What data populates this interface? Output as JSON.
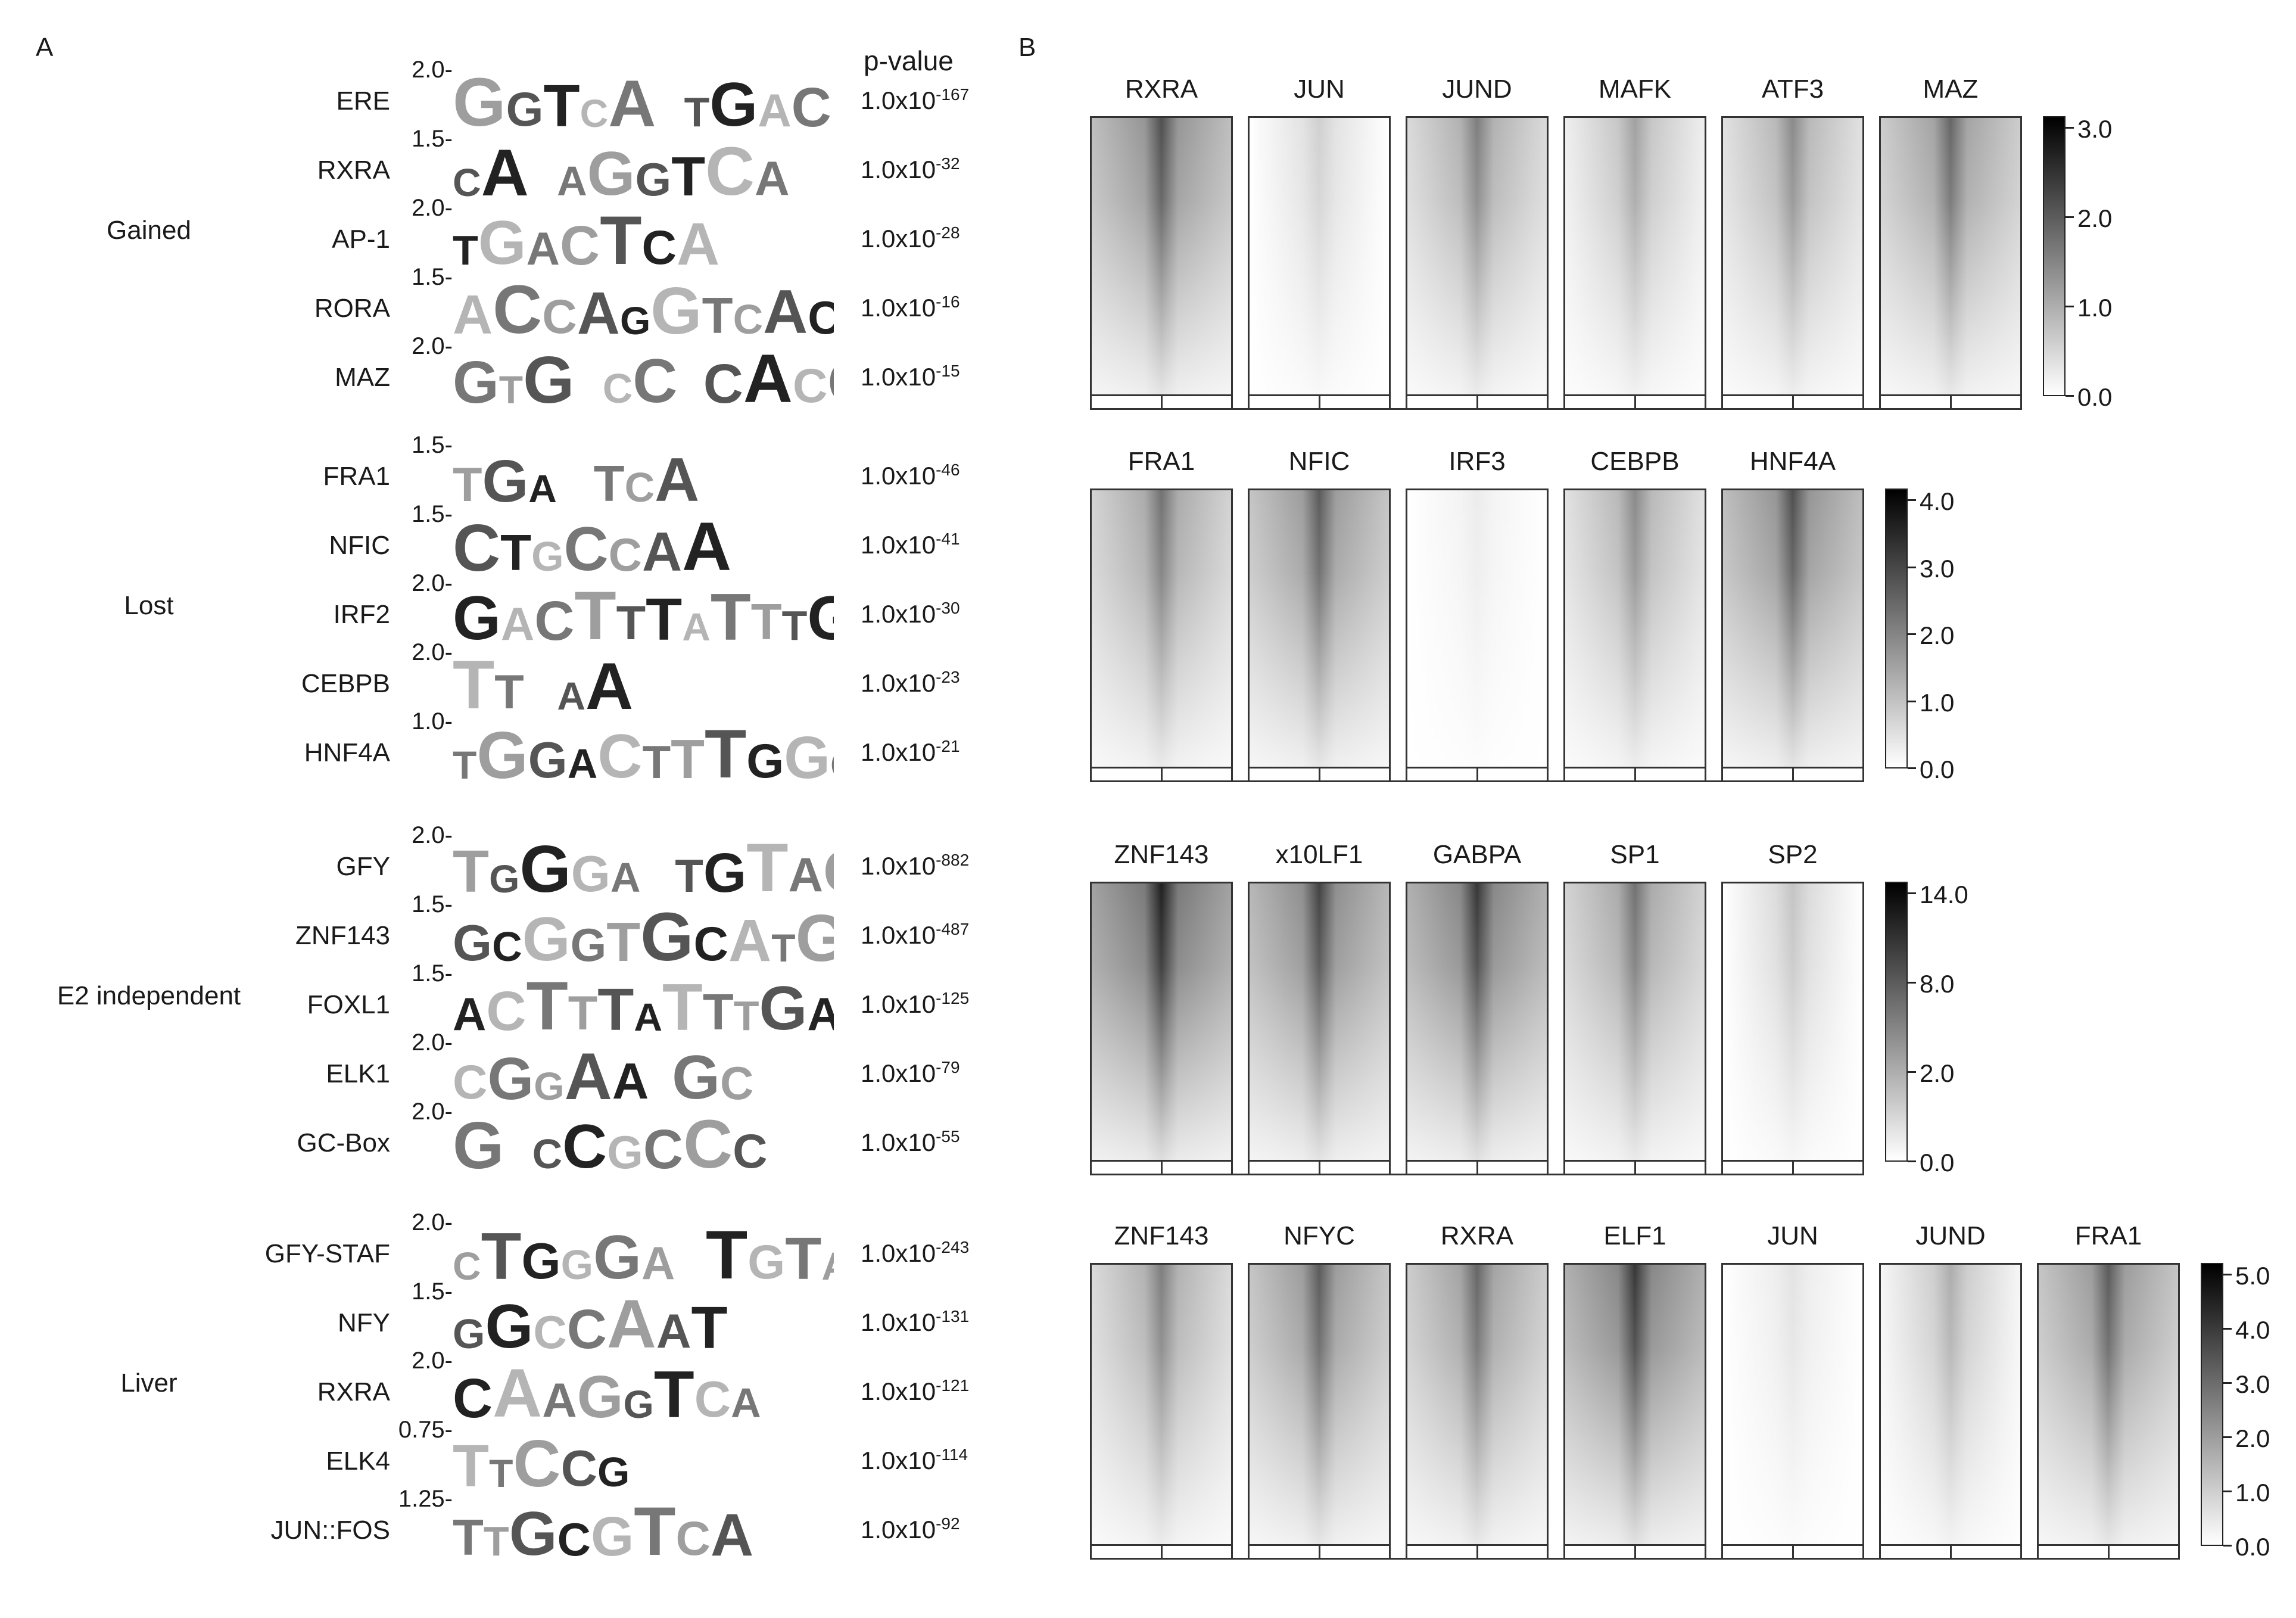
{
  "panelA": {
    "letter": "A",
    "pvalue_header": "p-value",
    "groups": [
      {
        "label": "Gained",
        "motifs": [
          {
            "name": "ERE",
            "ytick": "2.0-",
            "logo": "GGTCA TGACC.",
            "p_base": "1.0x10",
            "p_exp": "-167"
          },
          {
            "name": "RXRA",
            "ytick": "1.5-",
            "logo": "CA AGGTCA",
            "p_base": "1.0x10",
            "p_exp": "-32"
          },
          {
            "name": "AP-1",
            "ytick": "2.0-",
            "logo": "TGACTCA",
            "p_base": "1.0x10",
            "p_exp": "-28"
          },
          {
            "name": "RORA",
            "ytick": "1.5-",
            "logo": "ACCAGGTCACAG",
            "p_base": "1.0x10",
            "p_exp": "-16"
          },
          {
            "name": "MAZ",
            "ytick": "2.0-",
            "logo": "GTG CC CACCAG",
            "p_base": "1.0x10",
            "p_exp": "-15"
          }
        ]
      },
      {
        "label": "Lost",
        "motifs": [
          {
            "name": "FRA1",
            "ytick": "1.5-",
            "logo": "TGA TCA",
            "p_base": "1.0x10",
            "p_exp": "-46"
          },
          {
            "name": "NFIC",
            "ytick": "1.5-",
            "logo": "CTGCCAA",
            "p_base": "1.0x10",
            "p_exp": "-41"
          },
          {
            "name": "IRF2",
            "ytick": "2.0-",
            "logo": "GACTTTATTTG",
            "p_base": "1.0x10",
            "p_exp": "-30"
          },
          {
            "name": "CEBPB",
            "ytick": "2.0-",
            "logo": "TT AA",
            "p_base": "1.0x10",
            "p_exp": "-23"
          },
          {
            "name": "HNF4A",
            "ytick": "1.0-",
            "logo": "TGGACTTTGGCC",
            "p_base": "1.0x10",
            "p_exp": "-21"
          }
        ]
      },
      {
        "label": "E2 independent",
        "motifs": [
          {
            "name": "GFY",
            "ytick": "2.0-",
            "logo": "TGGGA TGTAGT",
            "p_base": "1.0x10",
            "p_exp": "-882"
          },
          {
            "name": "ZNF143",
            "ytick": "1.5-",
            "logo": "GCGGTGCATGCTGGGA",
            "p_base": "1.0x10",
            "p_exp": "-487"
          },
          {
            "name": "FOXL1",
            "ytick": "1.5-",
            "logo": "ACTTTATTTGAA",
            "p_base": "1.0x10",
            "p_exp": "-125"
          },
          {
            "name": "ELK1",
            "ytick": "2.0-",
            "logo": "CGGAA GC",
            "p_base": "1.0x10",
            "p_exp": "-79"
          },
          {
            "name": "GC-Box",
            "ytick": "2.0-",
            "logo": "G CCGCCC",
            "p_base": "1.0x10",
            "p_exp": "-55"
          }
        ]
      },
      {
        "label": "Liver",
        "motifs": [
          {
            "name": "GFY-STAF",
            "ytick": "2.0-",
            "logo": "CTGGGA TGTAGTTC",
            "p_base": "1.0x10",
            "p_exp": "-243"
          },
          {
            "name": "NFY",
            "ytick": "1.5-",
            "logo": "GGCCAAT",
            "p_base": "1.0x10",
            "p_exp": "-131"
          },
          {
            "name": "RXRA",
            "ytick": "2.0-",
            "logo": "CAAGGTCA",
            "p_base": "1.0x10",
            "p_exp": "-121"
          },
          {
            "name": "ELK4",
            "ytick": "0.75-",
            "logo": "TTCCG",
            "p_base": "1.0x10",
            "p_exp": "-114"
          },
          {
            "name": "JUN::FOS",
            "ytick": "1.25-",
            "logo": "TTGCGTCA",
            "p_base": "1.0x10",
            "p_exp": "-92"
          }
        ]
      }
    ]
  },
  "panelB": {
    "letter": "B",
    "rows": [
      {
        "titles": [
          "RXRA",
          "JUN",
          "JUND",
          "MAFK",
          "ATF3",
          "MAZ"
        ],
        "intensity": [
          0.75,
          0.2,
          0.55,
          0.4,
          0.5,
          0.65
        ],
        "colorbar": [
          "3.0",
          "2.0",
          "1.0",
          "0.0"
        ]
      },
      {
        "titles": [
          "FRA1",
          "NFIC",
          "IRF3",
          "CEBPB",
          "HNF4A"
        ],
        "intensity": [
          0.6,
          0.7,
          0.08,
          0.5,
          0.75
        ],
        "colorbar": [
          "4.0",
          "3.0",
          "2.0",
          "1.0",
          "0.0"
        ]
      },
      {
        "titles": [
          "ZNF143",
          "x10LF1",
          "GABPA",
          "SP1",
          "SP2"
        ],
        "intensity": [
          0.95,
          0.8,
          0.85,
          0.6,
          0.25
        ],
        "colorbar": [
          "14.0",
          "8.0",
          "2.0",
          "0.0"
        ]
      },
      {
        "titles": [
          "ZNF143",
          "NFYC",
          "RXRA",
          "ELF1",
          "JUN",
          "JUND",
          "FRA1"
        ],
        "intensity": [
          0.55,
          0.7,
          0.65,
          0.85,
          0.12,
          0.35,
          0.7
        ],
        "colorbar": [
          "5.0",
          "4.0",
          "3.0",
          "2.0",
          "1.0",
          "0.0"
        ]
      }
    ]
  }
}
